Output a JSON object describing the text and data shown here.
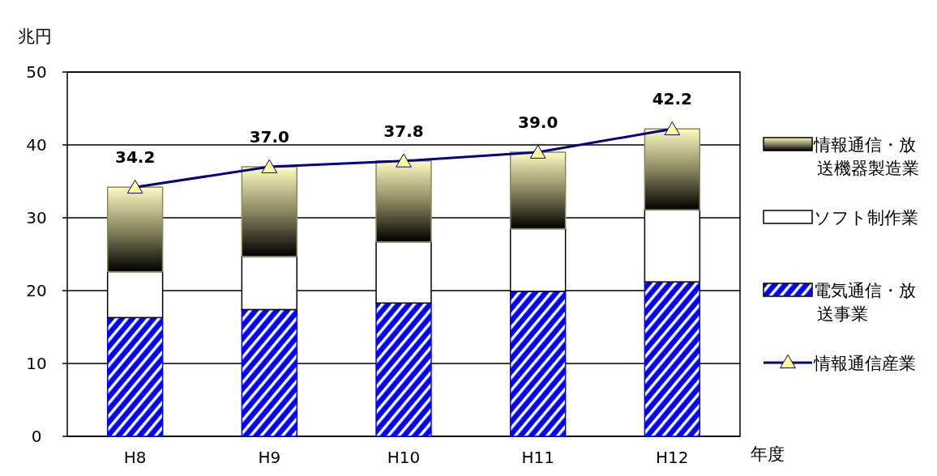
{
  "chart_data": {
    "type": "bar",
    "stacked": true,
    "ylabel": "兆円",
    "xlabel": "年度",
    "categories": [
      "H8",
      "H9",
      "H10",
      "H11",
      "H12"
    ],
    "ylim": [
      0,
      50
    ],
    "yticks": [
      0,
      10,
      20,
      30,
      40,
      50
    ],
    "grid": "y",
    "legend": "right",
    "series": [
      {
        "name": "電気通信・放送事業",
        "color": "#0000ff",
        "values": [
          16.3,
          17.4,
          18.3,
          19.9,
          21.2
        ]
      },
      {
        "name": "ソフト制作業",
        "color": "#ffffff",
        "values": [
          6.3,
          7.3,
          8.4,
          8.6,
          9.9
        ]
      },
      {
        "name": "情報通信・放送機器製造業",
        "color": "#8a8760",
        "values": [
          11.6,
          12.3,
          11.1,
          10.5,
          11.1
        ]
      },
      {
        "name": "情報通信産業",
        "type": "line",
        "color": "#000080",
        "marker": "triangle",
        "values": [
          34.2,
          37.0,
          37.8,
          39.0,
          42.2
        ],
        "value_labels": [
          "34.2",
          "37.0",
          "37.8",
          "39.0",
          "42.2"
        ]
      }
    ]
  }
}
